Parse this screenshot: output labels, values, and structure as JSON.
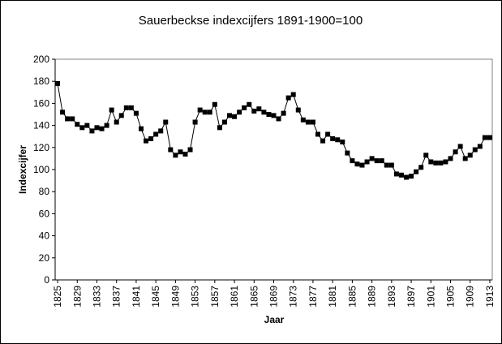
{
  "chart_data": {
    "type": "line",
    "title": "Sauerbeckse indexcijfers 1891-1900=100",
    "x_label": "Jaar",
    "y_label": "Indexcijfer",
    "x": [
      1825,
      1826,
      1827,
      1828,
      1829,
      1830,
      1831,
      1832,
      1833,
      1834,
      1835,
      1836,
      1837,
      1838,
      1839,
      1840,
      1841,
      1842,
      1843,
      1844,
      1845,
      1846,
      1847,
      1848,
      1849,
      1850,
      1851,
      1852,
      1853,
      1854,
      1855,
      1856,
      1857,
      1858,
      1859,
      1860,
      1861,
      1862,
      1863,
      1864,
      1865,
      1866,
      1867,
      1868,
      1869,
      1870,
      1871,
      1872,
      1873,
      1874,
      1875,
      1876,
      1877,
      1878,
      1879,
      1880,
      1881,
      1882,
      1883,
      1884,
      1885,
      1886,
      1887,
      1888,
      1889,
      1890,
      1891,
      1892,
      1893,
      1894,
      1895,
      1896,
      1897,
      1898,
      1899,
      1900,
      1901,
      1902,
      1903,
      1904,
      1905,
      1906,
      1907,
      1908,
      1909,
      1910,
      1911,
      1912,
      1913
    ],
    "series": [
      {
        "color": "#000000",
        "values": [
          178,
          152,
          146,
          146,
          141,
          138,
          140,
          135,
          138,
          137,
          140,
          154,
          143,
          149,
          156,
          156,
          151,
          137,
          126,
          128,
          132,
          135,
          143,
          118,
          113,
          116,
          114,
          118,
          143,
          154,
          152,
          152,
          159,
          138,
          143,
          149,
          148,
          152,
          156,
          159,
          153,
          155,
          152,
          150,
          149,
          146,
          151,
          165,
          168,
          154,
          145,
          143,
          143,
          132,
          126,
          132,
          128,
          127,
          125,
          115,
          108,
          105,
          104,
          107,
          110,
          108,
          108,
          104,
          104,
          96,
          95,
          93,
          94,
          98,
          102,
          113,
          107,
          106,
          106,
          107,
          110,
          116,
          121,
          110,
          113,
          118,
          121,
          129,
          129
        ]
      }
    ],
    "xlim": [
      1824.5,
      1913.5
    ],
    "xticks": [
      1825,
      1829,
      1833,
      1837,
      1841,
      1845,
      1849,
      1853,
      1857,
      1861,
      1865,
      1869,
      1873,
      1877,
      1881,
      1885,
      1889,
      1893,
      1897,
      1901,
      1905,
      1909,
      1913
    ],
    "ylim": [
      0,
      200
    ],
    "yticks": [
      0,
      20,
      40,
      60,
      80,
      100,
      120,
      140,
      160,
      180,
      200
    ]
  }
}
